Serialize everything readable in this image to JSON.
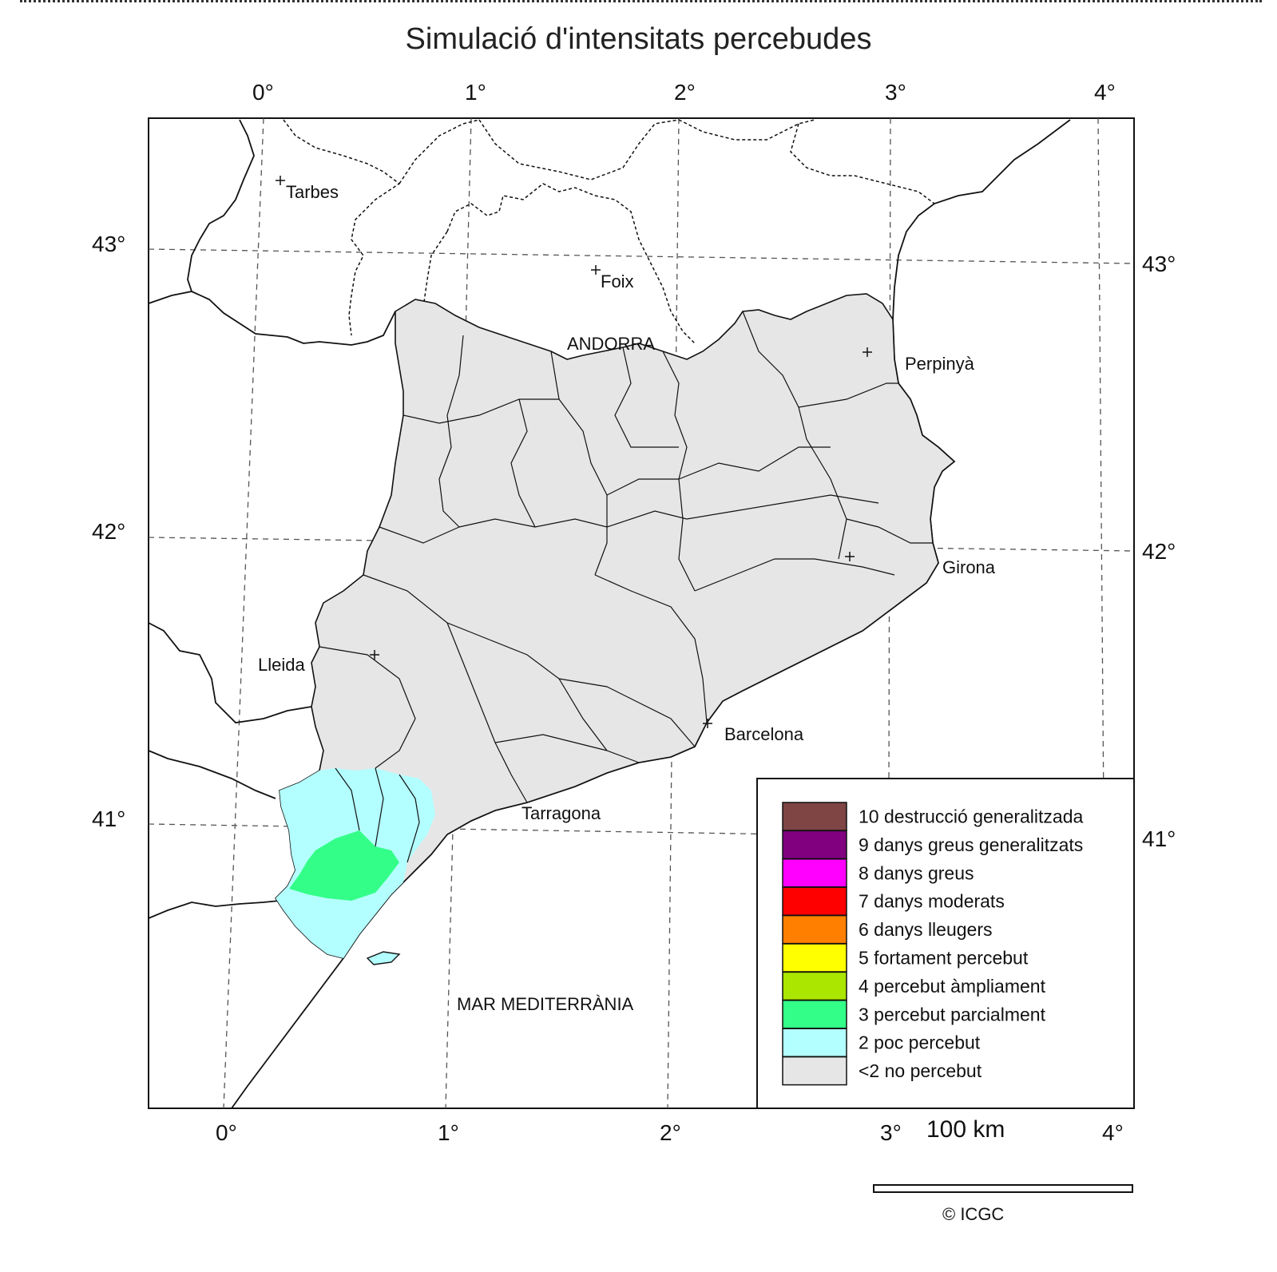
{
  "title": "Simulació d'intensitats percebudes",
  "longitude_ticks_top": [
    "0°",
    "1°",
    "2°",
    "3°",
    "4°"
  ],
  "longitude_ticks_bottom": [
    "0°",
    "1°",
    "2°",
    "3°",
    "4°"
  ],
  "latitude_ticks_left": [
    "43°",
    "42°",
    "41°"
  ],
  "latitude_ticks_right": [
    "43°",
    "42°",
    "41°"
  ],
  "places": {
    "tarbes": "Tarbes",
    "foix": "Foix",
    "andorra": "ANDORRA",
    "perpinya": "Perpinyà",
    "girona": "Girona",
    "lleida": "Lleida",
    "barcelona": "Barcelona",
    "tarragona": "Tarragona",
    "sea": "MAR MEDITERRÀNIA"
  },
  "legend": [
    {
      "label": "10 destrucció generalitzada",
      "color": "#7f4444"
    },
    {
      "label": "9 danys greus generalitzats",
      "color": "#800080"
    },
    {
      "label": "8 danys greus",
      "color": "#ff00ff"
    },
    {
      "label": "7 danys moderats",
      "color": "#ff0000"
    },
    {
      "label": "6 danys lleugers",
      "color": "#ff8000"
    },
    {
      "label": "5 fortament percebut",
      "color": "#ffff00"
    },
    {
      "label": "4 percebut àmpliament",
      "color": "#aae600"
    },
    {
      "label": "3 percebut parcialment",
      "color": "#33ff88"
    },
    {
      "label": "2 poc percebut",
      "color": "#b3ffff"
    },
    {
      "label": "<2 no percebut",
      "color": "#e6e6e6"
    }
  ],
  "scale_label": "100 km",
  "credit": "© ICGC"
}
